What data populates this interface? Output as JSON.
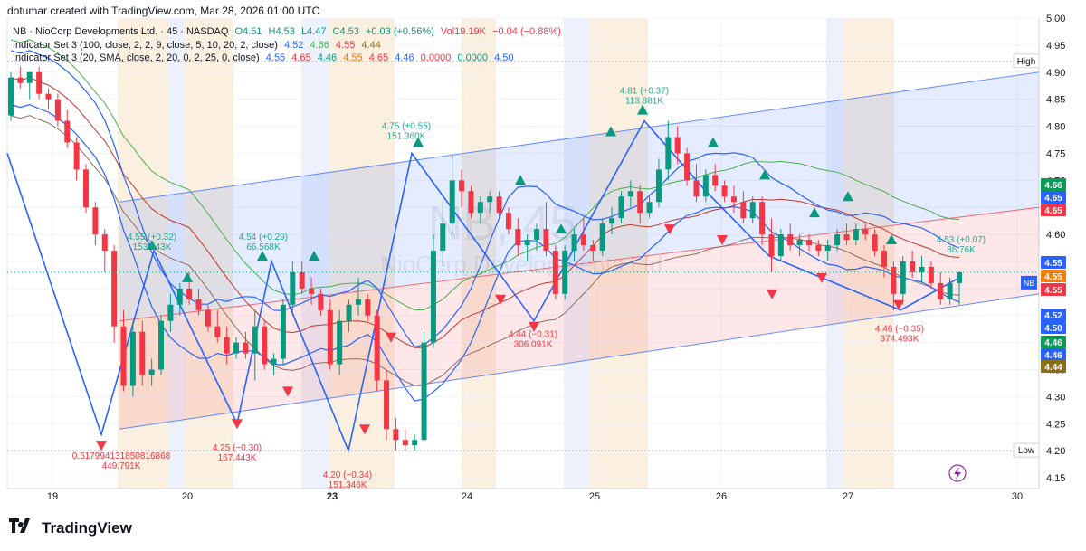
{
  "header": {
    "watermark_line": "dotumar created with TradingView.com, Mar 28, 2026 01:00 UTC"
  },
  "legend": {
    "symbol_line": {
      "symbol": "NB · NioCorp Developments Ltd. · 45 · NASDAQ",
      "o": "O4.51",
      "h": "H4.53",
      "l": "L4.47",
      "c": "C4.53",
      "chg": "+0.03 (+0.56%)",
      "vol": "Vol19.19K",
      "vol_chg": "−0.04 (−0.88%)"
    },
    "indicator1": {
      "label": "Indicator Set 3 (100, close, 2, 2, 9, close, 5, 10, 20, 2, close)",
      "values": [
        "4.52",
        "4.66",
        "4.55",
        "4.44"
      ]
    },
    "indicator2": {
      "label": "Indicator Set 3 (20, SMA, close, 2, 20, 0, 2, 25, 0, close)",
      "values": [
        "4.55",
        "4.65",
        "4.46",
        "4.55",
        "4.65",
        "4.46",
        "0.0000",
        "0.0000",
        "4.50"
      ]
    }
  },
  "chart_data": {
    "type": "candlestick",
    "title": "NB · NioCorp Developments Ltd. · 45 · NASDAQ",
    "ylim": [
      4.13,
      5.0
    ],
    "y_ticks": [
      "5.00",
      "4.95",
      "4.90",
      "4.85",
      "4.80",
      "4.75",
      "4.70",
      "4.65",
      "4.60",
      "4.55",
      "4.50",
      "4.45",
      "4.40",
      "4.35",
      "4.30",
      "4.25",
      "4.20",
      "4.15"
    ],
    "x_ticks": [
      "19",
      "20",
      "23",
      "24",
      "25",
      "26",
      "27",
      "30"
    ],
    "grid": true,
    "watermark": {
      "symbol": "NB, 45",
      "name": "NioCorp Developments Ltd."
    },
    "candles": [
      {
        "o": 4.82,
        "h": 4.9,
        "l": 4.81,
        "c": 4.89
      },
      {
        "o": 4.89,
        "h": 4.91,
        "l": 4.87,
        "c": 4.88
      },
      {
        "o": 4.88,
        "h": 4.9,
        "l": 4.85,
        "c": 4.9
      },
      {
        "o": 4.9,
        "h": 4.91,
        "l": 4.85,
        "c": 4.86
      },
      {
        "o": 4.86,
        "h": 4.87,
        "l": 4.83,
        "c": 4.85
      },
      {
        "o": 4.85,
        "h": 4.86,
        "l": 4.8,
        "c": 4.81
      },
      {
        "o": 4.81,
        "h": 4.83,
        "l": 4.76,
        "c": 4.77
      },
      {
        "o": 4.77,
        "h": 4.78,
        "l": 4.7,
        "c": 4.72
      },
      {
        "o": 4.72,
        "h": 4.73,
        "l": 4.64,
        "c": 4.65
      },
      {
        "o": 4.65,
        "h": 4.66,
        "l": 4.58,
        "c": 4.6
      },
      {
        "o": 4.6,
        "h": 4.61,
        "l": 4.53,
        "c": 4.57
      },
      {
        "o": 4.57,
        "h": 4.58,
        "l": 4.4,
        "c": 4.43
      },
      {
        "o": 4.43,
        "h": 4.46,
        "l": 4.31,
        "c": 4.32
      },
      {
        "o": 4.32,
        "h": 4.44,
        "l": 4.3,
        "c": 4.42
      },
      {
        "o": 4.42,
        "h": 4.44,
        "l": 4.32,
        "c": 4.34
      },
      {
        "o": 4.34,
        "h": 4.37,
        "l": 4.32,
        "c": 4.35
      },
      {
        "o": 4.35,
        "h": 4.45,
        "l": 4.34,
        "c": 4.44
      },
      {
        "o": 4.44,
        "h": 4.49,
        "l": 4.42,
        "c": 4.47
      },
      {
        "o": 4.47,
        "h": 4.51,
        "l": 4.45,
        "c": 4.5
      },
      {
        "o": 4.5,
        "h": 4.53,
        "l": 4.47,
        "c": 4.48
      },
      {
        "o": 4.48,
        "h": 4.5,
        "l": 4.45,
        "c": 4.46
      },
      {
        "o": 4.46,
        "h": 4.47,
        "l": 4.42,
        "c": 4.43
      },
      {
        "o": 4.43,
        "h": 4.46,
        "l": 4.4,
        "c": 4.41
      },
      {
        "o": 4.41,
        "h": 4.43,
        "l": 4.36,
        "c": 4.38
      },
      {
        "o": 4.38,
        "h": 4.41,
        "l": 4.37,
        "c": 4.4
      },
      {
        "o": 4.4,
        "h": 4.42,
        "l": 4.37,
        "c": 4.38
      },
      {
        "o": 4.38,
        "h": 4.46,
        "l": 4.33,
        "c": 4.43
      },
      {
        "o": 4.43,
        "h": 4.44,
        "l": 4.35,
        "c": 4.36
      },
      {
        "o": 4.36,
        "h": 4.38,
        "l": 4.34,
        "c": 4.37
      },
      {
        "o": 4.37,
        "h": 4.48,
        "l": 4.36,
        "c": 4.47
      },
      {
        "o": 4.47,
        "h": 4.55,
        "l": 4.45,
        "c": 4.53
      },
      {
        "o": 4.53,
        "h": 4.55,
        "l": 4.49,
        "c": 4.5
      },
      {
        "o": 4.5,
        "h": 4.52,
        "l": 4.47,
        "c": 4.49
      },
      {
        "o": 4.49,
        "h": 4.5,
        "l": 4.45,
        "c": 4.46
      },
      {
        "o": 4.46,
        "h": 4.48,
        "l": 4.35,
        "c": 4.36
      },
      {
        "o": 4.36,
        "h": 4.46,
        "l": 4.34,
        "c": 4.44
      },
      {
        "o": 4.44,
        "h": 4.48,
        "l": 4.42,
        "c": 4.47
      },
      {
        "o": 4.47,
        "h": 4.52,
        "l": 4.45,
        "c": 4.48
      },
      {
        "o": 4.48,
        "h": 4.49,
        "l": 4.44,
        "c": 4.45
      },
      {
        "o": 4.45,
        "h": 4.46,
        "l": 4.31,
        "c": 4.33
      },
      {
        "o": 4.33,
        "h": 4.35,
        "l": 4.22,
        "c": 4.24
      },
      {
        "o": 4.24,
        "h": 4.26,
        "l": 4.2,
        "c": 4.22
      },
      {
        "o": 4.22,
        "h": 4.24,
        "l": 4.2,
        "c": 4.21
      },
      {
        "o": 4.21,
        "h": 4.23,
        "l": 4.2,
        "c": 4.22
      },
      {
        "o": 4.22,
        "h": 4.42,
        "l": 4.22,
        "c": 4.4
      },
      {
        "o": 4.4,
        "h": 4.6,
        "l": 4.39,
        "c": 4.57
      },
      {
        "o": 4.57,
        "h": 4.66,
        "l": 4.54,
        "c": 4.62
      },
      {
        "o": 4.62,
        "h": 4.75,
        "l": 4.6,
        "c": 4.7
      },
      {
        "o": 4.7,
        "h": 4.72,
        "l": 4.65,
        "c": 4.68
      },
      {
        "o": 4.68,
        "h": 4.69,
        "l": 4.63,
        "c": 4.64
      },
      {
        "o": 4.64,
        "h": 4.67,
        "l": 4.62,
        "c": 4.66
      },
      {
        "o": 4.66,
        "h": 4.68,
        "l": 4.64,
        "c": 4.67
      },
      {
        "o": 4.67,
        "h": 4.68,
        "l": 4.63,
        "c": 4.64
      },
      {
        "o": 4.64,
        "h": 4.65,
        "l": 4.6,
        "c": 4.61
      },
      {
        "o": 4.61,
        "h": 4.63,
        "l": 4.56,
        "c": 4.58
      },
      {
        "o": 4.58,
        "h": 4.6,
        "l": 4.55,
        "c": 4.59
      },
      {
        "o": 4.59,
        "h": 4.62,
        "l": 4.57,
        "c": 4.61
      },
      {
        "o": 4.61,
        "h": 4.66,
        "l": 4.56,
        "c": 4.57
      },
      {
        "o": 4.57,
        "h": 4.58,
        "l": 4.48,
        "c": 4.49
      },
      {
        "o": 4.49,
        "h": 4.58,
        "l": 4.48,
        "c": 4.57
      },
      {
        "o": 4.57,
        "h": 4.61,
        "l": 4.55,
        "c": 4.6
      },
      {
        "o": 4.6,
        "h": 4.63,
        "l": 4.57,
        "c": 4.58
      },
      {
        "o": 4.58,
        "h": 4.59,
        "l": 4.55,
        "c": 4.57
      },
      {
        "o": 4.57,
        "h": 4.63,
        "l": 4.56,
        "c": 4.62
      },
      {
        "o": 4.62,
        "h": 4.65,
        "l": 4.6,
        "c": 4.63
      },
      {
        "o": 4.63,
        "h": 4.68,
        "l": 4.62,
        "c": 4.67
      },
      {
        "o": 4.67,
        "h": 4.7,
        "l": 4.65,
        "c": 4.68
      },
      {
        "o": 4.68,
        "h": 4.69,
        "l": 4.62,
        "c": 4.64
      },
      {
        "o": 4.64,
        "h": 4.67,
        "l": 4.63,
        "c": 4.66
      },
      {
        "o": 4.66,
        "h": 4.74,
        "l": 4.65,
        "c": 4.72
      },
      {
        "o": 4.72,
        "h": 4.81,
        "l": 4.7,
        "c": 4.78
      },
      {
        "o": 4.78,
        "h": 4.8,
        "l": 4.73,
        "c": 4.75
      },
      {
        "o": 4.75,
        "h": 4.76,
        "l": 4.69,
        "c": 4.7
      },
      {
        "o": 4.7,
        "h": 4.73,
        "l": 4.66,
        "c": 4.67
      },
      {
        "o": 4.67,
        "h": 4.72,
        "l": 4.66,
        "c": 4.71
      },
      {
        "o": 4.71,
        "h": 4.73,
        "l": 4.68,
        "c": 4.69
      },
      {
        "o": 4.69,
        "h": 4.7,
        "l": 4.66,
        "c": 4.67
      },
      {
        "o": 4.67,
        "h": 4.69,
        "l": 4.64,
        "c": 4.66
      },
      {
        "o": 4.66,
        "h": 4.68,
        "l": 4.62,
        "c": 4.63
      },
      {
        "o": 4.63,
        "h": 4.67,
        "l": 4.62,
        "c": 4.66
      },
      {
        "o": 4.66,
        "h": 4.67,
        "l": 4.58,
        "c": 4.6
      },
      {
        "o": 4.6,
        "h": 4.63,
        "l": 4.53,
        "c": 4.56
      },
      {
        "o": 4.56,
        "h": 4.61,
        "l": 4.55,
        "c": 4.6
      },
      {
        "o": 4.6,
        "h": 4.62,
        "l": 4.57,
        "c": 4.58
      },
      {
        "o": 4.58,
        "h": 4.6,
        "l": 4.56,
        "c": 4.59
      },
      {
        "o": 4.59,
        "h": 4.6,
        "l": 4.57,
        "c": 4.58
      },
      {
        "o": 4.58,
        "h": 4.59,
        "l": 4.56,
        "c": 4.57
      },
      {
        "o": 4.57,
        "h": 4.59,
        "l": 4.55,
        "c": 4.58
      },
      {
        "o": 4.58,
        "h": 4.61,
        "l": 4.57,
        "c": 4.6
      },
      {
        "o": 4.6,
        "h": 4.62,
        "l": 4.58,
        "c": 4.59
      },
      {
        "o": 4.59,
        "h": 4.62,
        "l": 4.58,
        "c": 4.61
      },
      {
        "o": 4.61,
        "h": 4.62,
        "l": 4.59,
        "c": 4.6
      },
      {
        "o": 4.6,
        "h": 4.61,
        "l": 4.56,
        "c": 4.57
      },
      {
        "o": 4.57,
        "h": 4.58,
        "l": 4.52,
        "c": 4.54
      },
      {
        "o": 4.54,
        "h": 4.55,
        "l": 4.46,
        "c": 4.49
      },
      {
        "o": 4.49,
        "h": 4.56,
        "l": 4.47,
        "c": 4.55
      },
      {
        "o": 4.55,
        "h": 4.57,
        "l": 4.52,
        "c": 4.53
      },
      {
        "o": 4.53,
        "h": 4.56,
        "l": 4.51,
        "c": 4.54
      },
      {
        "o": 4.54,
        "h": 4.55,
        "l": 4.5,
        "c": 4.51
      },
      {
        "o": 4.51,
        "h": 4.53,
        "l": 4.47,
        "c": 4.48
      },
      {
        "o": 4.48,
        "h": 4.52,
        "l": 4.47,
        "c": 4.51
      },
      {
        "o": 4.51,
        "h": 4.53,
        "l": 4.47,
        "c": 4.53
      }
    ],
    "annotations": [
      {
        "text": "4.81 (+0.37)",
        "sub": "113.881K",
        "color": "#22ab94",
        "at_price": 4.81
      },
      {
        "text": "4.75 (+0.55)",
        "sub": "151.360K",
        "color": "#22ab94",
        "at_price": 4.75
      },
      {
        "text": "4.55 (+0.32)",
        "sub": "153.043K",
        "color": "#22ab94",
        "at_price": 4.55
      },
      {
        "text": "4.54 (+0.29)",
        "sub": "66.568K",
        "color": "#22ab94",
        "at_price": 4.54
      },
      {
        "text": "4.53 (+0.07)",
        "sub": "86.76K",
        "color": "#22ab94",
        "at_price": 4.53
      },
      {
        "text": "4.25 (−0.30)",
        "sub": "167.443K",
        "color": "#f23645",
        "at_price": 4.25
      },
      {
        "text": "4.20 (−0.34)",
        "sub": "151.346K",
        "color": "#f23645",
        "at_price": 4.2
      },
      {
        "text": "4.44 (−0.31)",
        "sub": "306.091K",
        "color": "#f23645",
        "at_price": 4.44
      },
      {
        "text": "4.46 (−0.35)",
        "sub": "374.493K",
        "color": "#f23645",
        "at_price": 4.46
      },
      {
        "text": "0.517994131850816868",
        "sub": "449.791K",
        "color": "#f23645",
        "at_price": 4.21
      }
    ],
    "levels": {
      "high_label": "High",
      "low_label": "Low",
      "high": 4.92,
      "low": 4.2
    },
    "price_tags": [
      {
        "value": "4.66",
        "color": "#0a9b56"
      },
      {
        "value": "4.65",
        "color": "#2962ff"
      },
      {
        "value": "4.65",
        "color": "#f23645"
      },
      {
        "value": "4.55",
        "color": "#2962ff"
      },
      {
        "value": "4.55",
        "color": "#f57c00"
      },
      {
        "value": "4.55",
        "color": "#f23645"
      },
      {
        "value": "4.52",
        "color": "#2962ff"
      },
      {
        "value": "4.50",
        "color": "#2962ff"
      },
      {
        "value": "4.46",
        "color": "#0a9b56"
      },
      {
        "value": "4.46",
        "color": "#2962ff"
      },
      {
        "value": "4.44",
        "color": "#8a6d14"
      }
    ],
    "symbol_badge": "NB",
    "colors": {
      "up": "#089981",
      "down": "#f23645",
      "bb_blue": "#2962ff",
      "ma_red": "#c0392b",
      "ma_green": "#4caf50",
      "ma_brown": "#8d6e63"
    }
  },
  "footer": {
    "brand": "TradingView"
  }
}
